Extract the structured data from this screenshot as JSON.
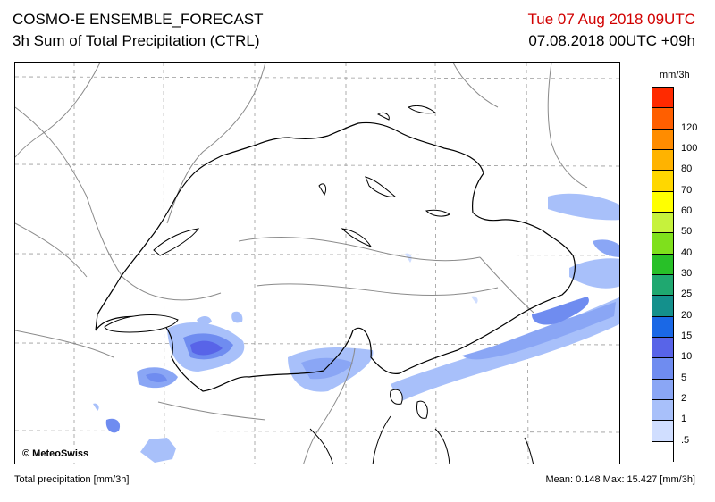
{
  "header": {
    "title_line1": "COSMO-E ENSEMBLE_FORECAST",
    "title_line2": "3h Sum of Total Precipitation (CTRL)",
    "valid_time": "Tue 07 Aug 2018 09UTC",
    "run_time": "07.08.2018 00UTC +09h"
  },
  "map": {
    "copyright": "© MeteoSwiss"
  },
  "legend": {
    "unit": "mm/3h",
    "levels": [
      {
        "label": "",
        "color": "#ff2a00"
      },
      {
        "label": "120",
        "color": "#ff5f00"
      },
      {
        "label": "100",
        "color": "#ff8c00"
      },
      {
        "label": "80",
        "color": "#ffb300"
      },
      {
        "label": "70",
        "color": "#ffd700"
      },
      {
        "label": "60",
        "color": "#ffff00"
      },
      {
        "label": "50",
        "color": "#c6f23c"
      },
      {
        "label": "40",
        "color": "#7fe01c"
      },
      {
        "label": "30",
        "color": "#28c028"
      },
      {
        "label": "25",
        "color": "#1fa870"
      },
      {
        "label": "20",
        "color": "#14908c"
      },
      {
        "label": "15",
        "color": "#1a68e6"
      },
      {
        "label": "10",
        "color": "#5864e8"
      },
      {
        "label": "5",
        "color": "#6f8cf0"
      },
      {
        "label": "2",
        "color": "#8aa6f5"
      },
      {
        "label": "1",
        "color": "#a8c0fa"
      },
      {
        "label": ".5",
        "color": "#d0deff"
      },
      {
        "label": "",
        "color": "#ffffff"
      }
    ]
  },
  "footer": {
    "left": "Total precipitation [mm/3h]",
    "right": "Mean:  0.148 Max: 15.427 [mm/3h]"
  }
}
